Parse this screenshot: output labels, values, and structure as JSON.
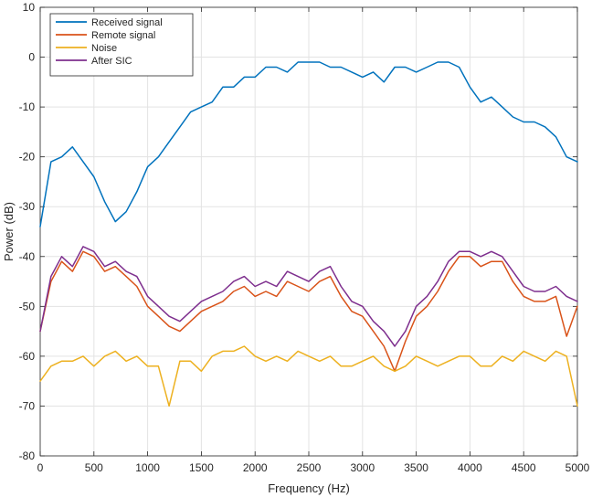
{
  "chart_data": {
    "type": "line",
    "title": "",
    "xlabel": "Frequency (Hz)",
    "ylabel": "Power (dB)",
    "xlim": [
      0,
      5000
    ],
    "ylim": [
      -80,
      10
    ],
    "xticks": [
      0,
      500,
      1000,
      1500,
      2000,
      2500,
      3000,
      3500,
      4000,
      4500,
      5000
    ],
    "yticks": [
      -80,
      -70,
      -60,
      -50,
      -40,
      -30,
      -20,
      -10,
      0,
      10
    ],
    "xtick_labels": [
      "0",
      "500",
      "1000",
      "1500",
      "2000",
      "2500",
      "3000",
      "3500",
      "4000",
      "4500",
      "5000"
    ],
    "ytick_labels": [
      "-80",
      "-70",
      "-60",
      "-50",
      "-40",
      "-30",
      "-20",
      "-10",
      "0",
      "10"
    ],
    "grid": true,
    "legend_position": "top-left",
    "x": [
      0,
      100,
      200,
      300,
      400,
      500,
      600,
      700,
      800,
      900,
      1000,
      1100,
      1200,
      1300,
      1400,
      1500,
      1600,
      1700,
      1800,
      1900,
      2000,
      2100,
      2200,
      2300,
      2400,
      2500,
      2600,
      2700,
      2800,
      2900,
      3000,
      3100,
      3200,
      3300,
      3400,
      3500,
      3600,
      3700,
      3800,
      3900,
      4000,
      4100,
      4200,
      4300,
      4400,
      4500,
      4600,
      4700,
      4800,
      4900,
      5000
    ],
    "series": [
      {
        "name": "Received signal",
        "color": "#0072BD",
        "values": [
          -34,
          -21,
          -20,
          -18,
          -21,
          -24,
          -29,
          -33,
          -31,
          -27,
          -22,
          -20,
          -17,
          -14,
          -11,
          -10,
          -9,
          -6,
          -6,
          -4,
          -4,
          -2,
          -2,
          -3,
          -1,
          -1,
          -1,
          -2,
          -2,
          -3,
          -4,
          -3,
          -5,
          -2,
          -2,
          -3,
          -2,
          -1,
          -1,
          -2,
          -6,
          -9,
          -8,
          -10,
          -12,
          -13,
          -13,
          -14,
          -16,
          -20,
          -21
        ]
      },
      {
        "name": "Remote signal",
        "color": "#D95319",
        "values": [
          -55,
          -45,
          -41,
          -43,
          -39,
          -40,
          -43,
          -42,
          -44,
          -46,
          -50,
          -52,
          -54,
          -55,
          -53,
          -51,
          -50,
          -49,
          -47,
          -46,
          -48,
          -47,
          -48,
          -45,
          -46,
          -47,
          -45,
          -44,
          -48,
          -51,
          -52,
          -55,
          -58,
          -63,
          -57,
          -52,
          -50,
          -47,
          -43,
          -40,
          -40,
          -42,
          -41,
          -41,
          -45,
          -48,
          -49,
          -49,
          -48,
          -56,
          -50
        ]
      },
      {
        "name": "Noise",
        "color": "#EDB120",
        "values": [
          -65,
          -62,
          -61,
          -61,
          -60,
          -62,
          -60,
          -59,
          -61,
          -60,
          -62,
          -62,
          -70,
          -61,
          -61,
          -63,
          -60,
          -59,
          -59,
          -58,
          -60,
          -61,
          -60,
          -61,
          -59,
          -60,
          -61,
          -60,
          -62,
          -62,
          -61,
          -60,
          -62,
          -63,
          -62,
          -60,
          -61,
          -62,
          -61,
          -60,
          -60,
          -62,
          -62,
          -60,
          -61,
          -59,
          -60,
          -61,
          -59,
          -60,
          -70
        ]
      },
      {
        "name": "After SIC",
        "color": "#7E2F8E",
        "values": [
          -55,
          -44,
          -40,
          -42,
          -38,
          -39,
          -42,
          -41,
          -43,
          -44,
          -48,
          -50,
          -52,
          -53,
          -51,
          -49,
          -48,
          -47,
          -45,
          -44,
          -46,
          -45,
          -46,
          -43,
          -44,
          -45,
          -43,
          -42,
          -46,
          -49,
          -50,
          -53,
          -55,
          -58,
          -55,
          -50,
          -48,
          -45,
          -41,
          -39,
          -39,
          -40,
          -39,
          -40,
          -43,
          -46,
          -47,
          -47,
          -46,
          -48,
          -49
        ]
      }
    ]
  }
}
